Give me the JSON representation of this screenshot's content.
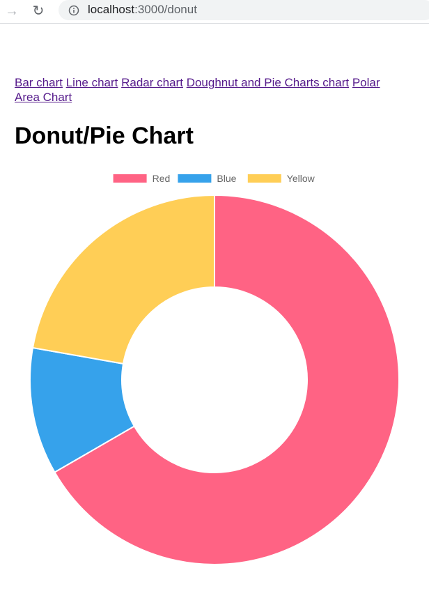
{
  "browser": {
    "url_host": "localhost",
    "url_path": ":3000/donut"
  },
  "nav": {
    "links": [
      "Bar chart",
      "Line chart",
      "Radar chart",
      "Doughnut and Pie Charts chart",
      "Polar Area Chart"
    ]
  },
  "page": {
    "title": "Donut/Pie Chart"
  },
  "chart_data": {
    "type": "pie",
    "variant": "doughnut",
    "categories": [
      "Red",
      "Blue",
      "Yellow"
    ],
    "values": [
      300,
      50,
      100
    ],
    "colors": [
      "#ff6384",
      "#36a2eb",
      "#ffce56"
    ],
    "legend": "top",
    "title": ""
  }
}
